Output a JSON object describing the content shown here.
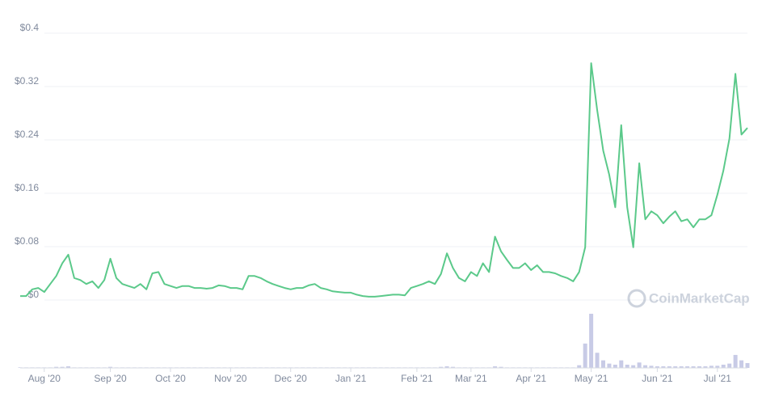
{
  "chart_data": {
    "type": "line",
    "categories": [
      null,
      null,
      null,
      null,
      "Aug '20",
      null,
      null,
      null,
      null,
      null,
      null,
      null,
      null,
      null,
      null,
      "Sep '20",
      null,
      null,
      null,
      null,
      null,
      null,
      null,
      null,
      null,
      "Oct '20",
      null,
      null,
      null,
      null,
      null,
      null,
      null,
      null,
      null,
      "Nov '20",
      null,
      null,
      null,
      null,
      null,
      null,
      null,
      null,
      null,
      "Dec '20",
      null,
      null,
      null,
      null,
      null,
      null,
      null,
      null,
      null,
      "Jan '21",
      null,
      null,
      null,
      null,
      null,
      null,
      null,
      null,
      null,
      null,
      "Feb '21",
      null,
      null,
      null,
      null,
      null,
      null,
      null,
      null,
      "Mar '21",
      null,
      null,
      null,
      null,
      null,
      null,
      null,
      null,
      null,
      "Apr '21",
      null,
      null,
      null,
      null,
      null,
      null,
      null,
      null,
      null,
      "May '21",
      null,
      null,
      null,
      null,
      null,
      null,
      null,
      null,
      null,
      null,
      "Jun '21",
      null,
      null,
      null,
      null,
      null,
      null,
      null,
      null,
      null,
      "Jul '21",
      null,
      null,
      null,
      null,
      null
    ],
    "values": [
      0.006,
      0.006,
      0.016,
      0.018,
      0.012,
      0.024,
      0.036,
      0.055,
      0.068,
      0.033,
      0.03,
      0.024,
      0.028,
      0.018,
      0.03,
      0.062,
      0.033,
      0.024,
      0.021,
      0.018,
      0.024,
      0.016,
      0.04,
      0.042,
      0.024,
      0.021,
      0.018,
      0.021,
      0.021,
      0.018,
      0.018,
      0.017,
      0.018,
      0.022,
      0.021,
      0.018,
      0.018,
      0.016,
      0.036,
      0.036,
      0.033,
      0.028,
      0.024,
      0.021,
      0.018,
      0.016,
      0.018,
      0.018,
      0.022,
      0.024,
      0.018,
      0.016,
      0.013,
      0.012,
      0.011,
      0.011,
      0.008,
      0.006,
      0.005,
      0.005,
      0.006,
      0.007,
      0.008,
      0.008,
      0.007,
      0.018,
      0.021,
      0.024,
      0.028,
      0.024,
      0.039,
      0.07,
      0.048,
      0.033,
      0.028,
      0.042,
      0.036,
      0.055,
      0.042,
      0.095,
      0.073,
      0.06,
      0.048,
      0.048,
      0.055,
      0.045,
      0.052,
      0.042,
      0.042,
      0.04,
      0.036,
      0.033,
      0.028,
      0.042,
      0.079,
      0.355,
      0.285,
      0.224,
      0.188,
      0.139,
      0.262,
      0.139,
      0.079,
      0.205,
      0.121,
      0.133,
      0.127,
      0.115,
      0.125,
      0.133,
      0.118,
      0.121,
      0.109,
      0.121,
      0.121,
      0.127,
      0.158,
      0.194,
      0.242,
      0.339,
      0.248,
      0.258
    ],
    "color": "#5bc98a",
    "volume": [
      1,
      1,
      1,
      1,
      1,
      1,
      2,
      2,
      3,
      1,
      1,
      1,
      1,
      1,
      1,
      2,
      1,
      1,
      1,
      1,
      1,
      1,
      1,
      1,
      1,
      1,
      1,
      1,
      1,
      1,
      1,
      1,
      1,
      1,
      1,
      1,
      1,
      1,
      1,
      1,
      1,
      1,
      1,
      1,
      1,
      1,
      1,
      1,
      1,
      1,
      1,
      1,
      1,
      1,
      1,
      1,
      1,
      1,
      1,
      1,
      1,
      1,
      1,
      1,
      1,
      1,
      1,
      1,
      1,
      1,
      2,
      3,
      2,
      1,
      1,
      1,
      1,
      1,
      1,
      3,
      2,
      1,
      1,
      1,
      1,
      1,
      1,
      1,
      1,
      1,
      1,
      1,
      1,
      5,
      45,
      100,
      28,
      14,
      8,
      6,
      14,
      6,
      5,
      10,
      5,
      4,
      3,
      3,
      3,
      3,
      3,
      3,
      3,
      3,
      3,
      4,
      4,
      6,
      8,
      24,
      14,
      9
    ],
    "volume_color": "#c8cbe6",
    "volume_ylim": [
      0,
      100
    ],
    "ylim": [
      0,
      0.4
    ],
    "yticks": [
      {
        "value": 0,
        "label": "$0"
      },
      {
        "value": 0.08,
        "label": "$0.08"
      },
      {
        "value": 0.16,
        "label": "$0.16"
      },
      {
        "value": 0.24,
        "label": "$0.24"
      },
      {
        "value": 0.32,
        "label": "$0.32"
      },
      {
        "value": 0.4,
        "label": "$0.4"
      }
    ],
    "grid": true,
    "watermark": "CoinMarketCap"
  }
}
